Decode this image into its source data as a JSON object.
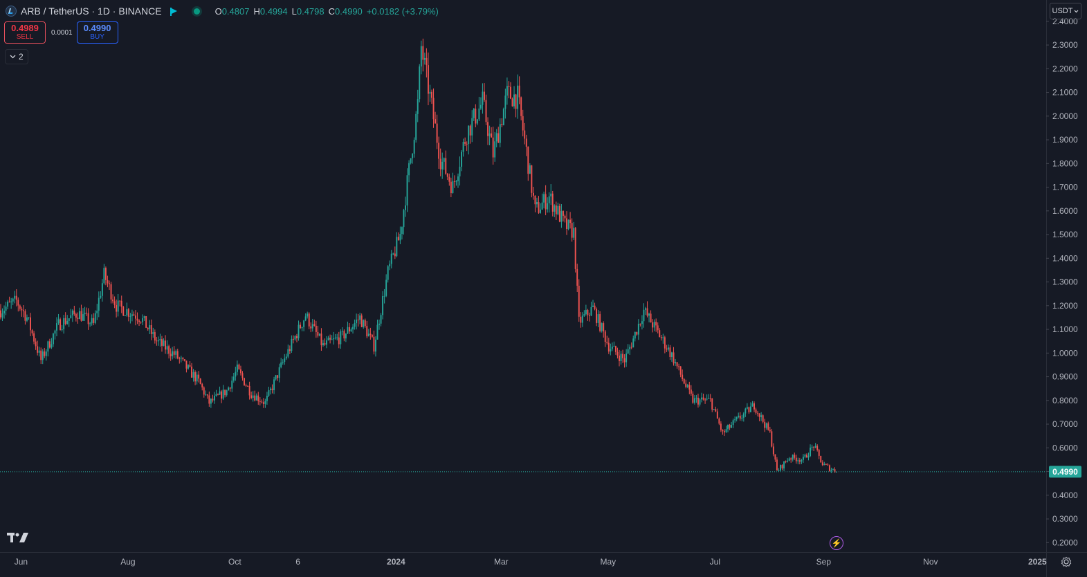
{
  "header": {
    "symbol_title": "ARB / TetherUS · 1D · BINANCE",
    "ohlc": [
      {
        "label": "O",
        "value": "0.4807"
      },
      {
        "label": "H",
        "value": "0.4994"
      },
      {
        "label": "L",
        "value": "0.4798"
      },
      {
        "label": "C",
        "value": "0.4990"
      }
    ],
    "change": "+0.0182 (+3.79%)"
  },
  "trade": {
    "sell_price": "0.4989",
    "sell_label": "SELL",
    "spread": "0.0001",
    "buy_price": "0.4990",
    "buy_label": "BUY"
  },
  "indicators_toggle": {
    "count": "2"
  },
  "currency": {
    "label": "USDT"
  },
  "icons": [
    "arbitrum-logo-icon",
    "flag-icon",
    "status-dot-icon",
    "chevron-down-icon",
    "tradingview-logo-icon",
    "lightning-icon",
    "settings-gear-icon"
  ],
  "colors": {
    "background": "#161a25",
    "up": "#26a69a",
    "down": "#ef5350",
    "text": "#b2b5be",
    "last_price": "#26a69a"
  },
  "chart_data": {
    "type": "candlestick",
    "title": "ARB / TetherUS · 1D · BINANCE",
    "y_axis": {
      "ticks": [
        "0.2000",
        "0.3000",
        "0.4000",
        "0.5000",
        "0.6000",
        "0.7000",
        "0.8000",
        "0.9000",
        "1.0000",
        "1.1000",
        "1.2000",
        "1.3000",
        "1.4000",
        "1.5000",
        "1.6000",
        "1.7000",
        "1.8000",
        "1.9000",
        "2.0000",
        "2.1000",
        "2.2000",
        "2.3000",
        "2.4000"
      ],
      "ylim": [
        0.16,
        2.49
      ],
      "last_price_label": "0.4990",
      "last_price": 0.499
    },
    "x_axis": {
      "labels": [
        "Jun",
        "Aug",
        "Oct",
        "6",
        "2024",
        "Mar",
        "May",
        "Jul",
        "Sep",
        "Nov",
        "2025"
      ],
      "label_dates": [
        "2023-06-01",
        "2023-08-01",
        "2023-10-01",
        "2023-11-06",
        "2024-01-01",
        "2024-03-01",
        "2024-05-01",
        "2024-07-01",
        "2024-09-01",
        "2024-11-01",
        "2025-01-01"
      ],
      "start_date": "2023-05-20",
      "end_date": "2025-01-06"
    },
    "series": [
      {
        "keypoints": [
          [
            "2023-05-20",
            1.18
          ],
          [
            "2023-05-29",
            1.22
          ],
          [
            "2023-06-04",
            1.15
          ],
          [
            "2023-06-12",
            0.97
          ],
          [
            "2023-06-22",
            1.12
          ],
          [
            "2023-07-03",
            1.17
          ],
          [
            "2023-07-12",
            1.12
          ],
          [
            "2023-07-18",
            1.33
          ],
          [
            "2023-07-25",
            1.2
          ],
          [
            "2023-08-08",
            1.15
          ],
          [
            "2023-08-17",
            1.05
          ],
          [
            "2023-08-28",
            0.99
          ],
          [
            "2023-09-10",
            0.88
          ],
          [
            "2023-09-16",
            0.79
          ],
          [
            "2023-09-26",
            0.84
          ],
          [
            "2023-10-02",
            0.93
          ],
          [
            "2023-10-10",
            0.83
          ],
          [
            "2023-10-18",
            0.79
          ],
          [
            "2023-10-28",
            0.96
          ],
          [
            "2023-11-10",
            1.16
          ],
          [
            "2023-11-20",
            1.03
          ],
          [
            "2023-12-01",
            1.07
          ],
          [
            "2023-12-11",
            1.15
          ],
          [
            "2023-12-19",
            1.03
          ],
          [
            "2023-12-27",
            1.34
          ],
          [
            "2024-01-03",
            1.5
          ],
          [
            "2024-01-10",
            1.88
          ],
          [
            "2024-01-13",
            2.05
          ],
          [
            "2024-01-15",
            2.29
          ],
          [
            "2024-01-20",
            2.08
          ],
          [
            "2024-01-26",
            1.82
          ],
          [
            "2024-02-02",
            1.7
          ],
          [
            "2024-02-10",
            1.93
          ],
          [
            "2024-02-19",
            2.06
          ],
          [
            "2024-02-25",
            1.84
          ],
          [
            "2024-03-04",
            2.09
          ],
          [
            "2024-03-10",
            2.08
          ],
          [
            "2024-03-15",
            1.85
          ],
          [
            "2024-03-20",
            1.6
          ],
          [
            "2024-03-28",
            1.66
          ],
          [
            "2024-04-06",
            1.54
          ],
          [
            "2024-04-11",
            1.51
          ],
          [
            "2024-04-14",
            1.13
          ],
          [
            "2024-04-22",
            1.19
          ],
          [
            "2024-05-01",
            1.03
          ],
          [
            "2024-05-10",
            0.97
          ],
          [
            "2024-05-15",
            1.06
          ],
          [
            "2024-05-21",
            1.18
          ],
          [
            "2024-05-28",
            1.1
          ],
          [
            "2024-06-06",
            0.99
          ],
          [
            "2024-06-14",
            0.86
          ],
          [
            "2024-06-18",
            0.8
          ],
          [
            "2024-06-28",
            0.8
          ],
          [
            "2024-07-05",
            0.66
          ],
          [
            "2024-07-12",
            0.71
          ],
          [
            "2024-07-23",
            0.78
          ],
          [
            "2024-08-01",
            0.66
          ],
          [
            "2024-08-05",
            0.5
          ],
          [
            "2024-08-12",
            0.56
          ],
          [
            "2024-08-20",
            0.55
          ],
          [
            "2024-08-26",
            0.61
          ],
          [
            "2024-08-31",
            0.53
          ],
          [
            "2024-09-08",
            0.499
          ]
        ]
      }
    ]
  }
}
